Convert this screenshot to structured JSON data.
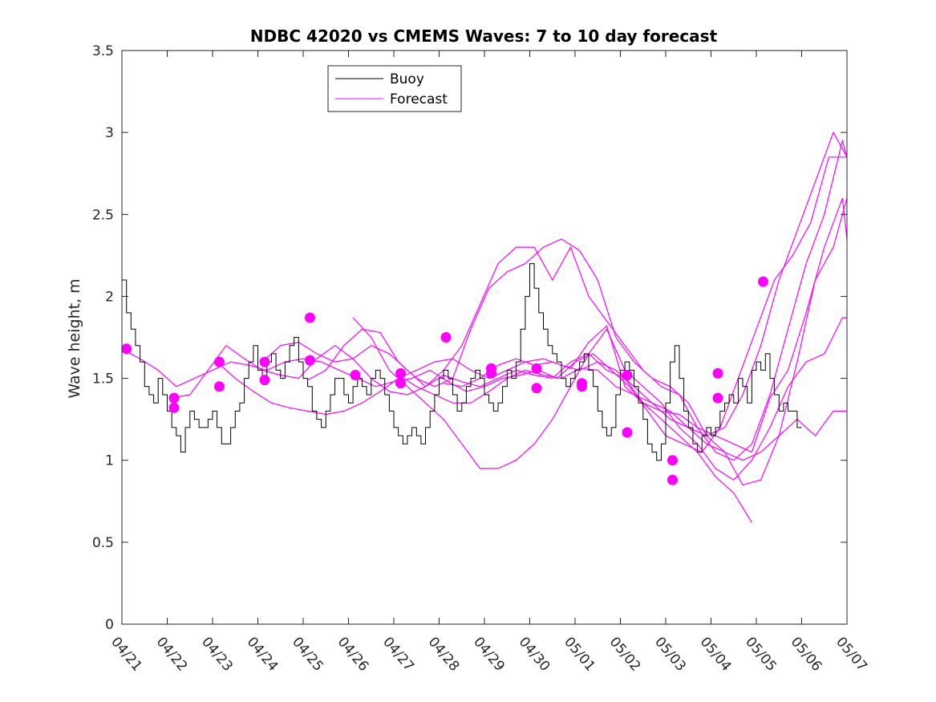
{
  "chart_data": {
    "type": "line",
    "title": "NDBC 42020 vs CMEMS Waves: 7 to 10 day forecast",
    "xlabel": "",
    "ylabel": "Wave height, m",
    "xlim": [
      "04/21",
      "05/07"
    ],
    "ylim": [
      0,
      3.5
    ],
    "x_ticks": [
      "04/21",
      "04/22",
      "04/23",
      "04/24",
      "04/25",
      "04/26",
      "04/27",
      "04/28",
      "04/29",
      "04/30",
      "05/01",
      "05/02",
      "05/03",
      "05/04",
      "05/05",
      "05/06",
      "05/07"
    ],
    "y_ticks": [
      "0",
      "0.5",
      "1",
      "1.5",
      "2",
      "2.5",
      "3",
      "3.5"
    ],
    "legend": {
      "placement": "top-center-left",
      "entries": [
        "Buoy",
        "Forecast"
      ]
    },
    "colors": {
      "buoy": "#000000",
      "forecast": "#ff00ff",
      "axes": "#262626"
    },
    "grid": false,
    "buoy": {
      "name": "Buoy",
      "x_days_since_04_21": [
        0,
        0.1,
        0.2,
        0.3,
        0.4,
        0.5,
        0.6,
        0.7,
        0.8,
        0.9,
        1,
        1.1,
        1.2,
        1.3,
        1.4,
        1.5,
        1.6,
        1.7,
        1.8,
        1.9,
        2,
        2.1,
        2.2,
        2.3,
        2.4,
        2.5,
        2.6,
        2.7,
        2.8,
        2.9,
        3,
        3.1,
        3.2,
        3.3,
        3.4,
        3.5,
        3.6,
        3.7,
        3.8,
        3.9,
        4,
        4.1,
        4.2,
        4.3,
        4.4,
        4.5,
        4.6,
        4.7,
        4.8,
        4.9,
        5,
        5.1,
        5.2,
        5.3,
        5.4,
        5.5,
        5.6,
        5.7,
        5.8,
        5.9,
        6,
        6.1,
        6.2,
        6.3,
        6.4,
        6.5,
        6.6,
        6.7,
        6.8,
        6.9,
        7,
        7.1,
        7.2,
        7.3,
        7.4,
        7.5,
        7.6,
        7.7,
        7.8,
        7.9,
        8,
        8.1,
        8.2,
        8.3,
        8.4,
        8.5,
        8.6,
        8.7,
        8.8,
        8.9,
        9,
        9.1,
        9.2,
        9.3,
        9.4,
        9.5,
        9.6,
        9.7,
        9.8,
        9.9,
        10,
        10.1,
        10.2,
        10.3,
        10.4,
        10.5,
        10.6,
        10.7,
        10.8,
        10.9,
        11,
        11.1,
        11.2,
        11.3,
        11.4,
        11.5,
        11.6,
        11.7,
        11.8,
        11.9,
        12,
        12.1,
        12.2,
        12.3,
        12.4,
        12.5,
        12.6,
        12.7,
        12.8,
        12.9,
        13,
        13.1,
        13.2,
        13.3,
        13.4,
        13.5,
        13.6,
        13.7,
        13.8,
        13.9,
        14,
        14.1,
        14.2,
        14.3,
        14.4,
        14.5,
        14.6,
        14.7,
        14.8,
        14.9,
        15,
        15.1,
        15.2,
        15.3
      ],
      "y": [
        2.1,
        1.9,
        1.8,
        1.7,
        1.6,
        1.45,
        1.4,
        1.35,
        1.5,
        1.4,
        1.3,
        1.2,
        1.15,
        1.05,
        1.2,
        1.3,
        1.25,
        1.2,
        1.2,
        1.25,
        1.3,
        1.2,
        1.1,
        1.1,
        1.2,
        1.3,
        1.35,
        1.5,
        1.6,
        1.7,
        1.55,
        1.5,
        1.6,
        1.65,
        1.55,
        1.5,
        1.6,
        1.7,
        1.75,
        1.6,
        1.5,
        1.45,
        1.3,
        1.25,
        1.2,
        1.3,
        1.4,
        1.5,
        1.5,
        1.4,
        1.35,
        1.45,
        1.5,
        1.45,
        1.4,
        1.5,
        1.55,
        1.5,
        1.4,
        1.3,
        1.2,
        1.15,
        1.1,
        1.15,
        1.2,
        1.15,
        1.1,
        1.2,
        1.3,
        1.4,
        1.5,
        1.55,
        1.5,
        1.4,
        1.3,
        1.35,
        1.45,
        1.5,
        1.55,
        1.5,
        1.4,
        1.35,
        1.3,
        1.35,
        1.45,
        1.55,
        1.5,
        1.6,
        1.8,
        2.0,
        2.2,
        2.05,
        1.9,
        1.8,
        1.7,
        1.65,
        1.6,
        1.5,
        1.45,
        1.5,
        1.55,
        1.6,
        1.65,
        1.55,
        1.45,
        1.3,
        1.2,
        1.15,
        1.2,
        1.4,
        1.55,
        1.6,
        1.55,
        1.45,
        1.35,
        1.25,
        1.1,
        1.05,
        1.0,
        1.1,
        1.35,
        1.6,
        1.7,
        1.5,
        1.3,
        1.2,
        1.1,
        1.05,
        1.15,
        1.2,
        1.15,
        1.2,
        1.3,
        1.35,
        1.4,
        1.35,
        1.5,
        1.45,
        1.35,
        1.55,
        1.6,
        1.55,
        1.65,
        1.5,
        1.4,
        1.3,
        1.35,
        1.3,
        1.3,
        1.2
      ],
      "stepped": true
    },
    "forecast_series": [
      {
        "x_days_since_04_21": [
          0,
          0.4,
          0.8,
          1.2,
          1.6,
          2.0,
          2.4,
          2.8,
          3.2,
          3.6,
          4.0,
          4.4,
          4.8,
          5.2,
          5.6,
          6.0,
          6.4,
          6.8,
          7.2,
          7.6,
          8.0,
          8.4,
          8.8,
          9.2,
          9.6,
          10.0,
          10.4,
          10.8,
          11.2,
          11.6,
          12.0,
          12.4,
          12.8,
          13.2,
          13.6,
          14.0,
          14.4,
          14.8,
          15.2,
          15.6,
          16.0
        ],
        "y": [
          1.68,
          1.62,
          1.55,
          1.45,
          1.5,
          1.55,
          1.6,
          1.58,
          1.55,
          1.6,
          1.62,
          1.6,
          1.55,
          1.5,
          1.45,
          1.48,
          1.5,
          1.55,
          1.48,
          1.42,
          1.45,
          1.5,
          1.52,
          1.55,
          1.5,
          1.6,
          1.65,
          1.55,
          1.45,
          1.3,
          1.15,
          1.1,
          1.05,
          1.2,
          1.5,
          1.8,
          2.1,
          2.25,
          2.45,
          2.85,
          2.85
        ]
      },
      {
        "x_days_since_04_21": [
          1.1,
          1.5,
          1.9,
          2.3,
          2.7,
          3.1,
          3.5,
          3.9,
          4.3,
          4.7,
          5.1,
          5.5,
          5.9,
          6.3,
          6.7,
          7.1,
          7.5,
          7.9,
          8.3,
          8.7,
          9.1,
          9.5,
          9.9,
          10.3,
          10.7,
          11.1,
          11.5,
          11.9,
          12.3,
          12.7,
          13.1,
          13.5,
          13.9
        ],
        "y": [
          1.38,
          1.4,
          1.55,
          1.7,
          1.62,
          1.55,
          1.52,
          1.5,
          1.62,
          1.7,
          1.62,
          1.5,
          1.42,
          1.4,
          1.45,
          1.52,
          1.48,
          1.45,
          1.5,
          1.55,
          1.52,
          1.5,
          1.6,
          1.65,
          1.55,
          1.5,
          1.35,
          1.25,
          1.15,
          1.05,
          0.9,
          0.8,
          0.62
        ]
      },
      {
        "x_days_since_04_21": [
          2.1,
          2.5,
          2.9,
          3.3,
          3.7,
          4.1,
          4.5,
          4.9,
          5.3,
          5.7,
          6.1,
          6.5,
          6.9,
          7.3,
          7.7,
          8.1,
          8.5,
          8.9,
          9.3,
          9.7,
          10.1,
          10.5,
          10.9,
          11.3,
          11.7,
          12.1,
          12.5,
          12.9,
          13.3,
          13.7,
          14.1,
          14.5,
          14.9,
          15.3,
          15.7,
          16.0
        ],
        "y": [
          1.6,
          1.5,
          1.42,
          1.35,
          1.32,
          1.3,
          1.28,
          1.3,
          1.35,
          1.42,
          1.5,
          1.55,
          1.6,
          1.62,
          1.55,
          1.5,
          1.55,
          1.6,
          1.62,
          1.58,
          1.55,
          1.6,
          1.55,
          1.45,
          1.35,
          1.25,
          1.2,
          1.15,
          1.2,
          1.4,
          1.7,
          2.1,
          2.4,
          2.7,
          3.0,
          2.85
        ]
      },
      {
        "x_days_since_04_21": [
          3.1,
          3.5,
          3.9,
          4.3,
          4.7,
          5.1,
          5.5,
          5.9,
          6.3,
          6.7,
          7.1,
          7.5,
          7.9,
          8.3,
          8.7,
          9.1,
          9.5,
          9.9,
          10.3,
          10.7,
          11.1,
          11.5,
          11.9,
          12.3,
          12.7,
          13.1,
          13.5,
          13.9,
          14.3,
          14.7,
          15.1,
          15.5,
          15.9,
          16.0
        ],
        "y": [
          1.6,
          1.7,
          1.72,
          1.65,
          1.6,
          1.62,
          1.7,
          1.65,
          1.55,
          1.45,
          1.55,
          1.7,
          1.95,
          2.2,
          2.3,
          2.3,
          2.1,
          2.3,
          2.0,
          1.85,
          1.7,
          1.55,
          1.45,
          1.4,
          1.2,
          1.05,
          1.0,
          1.1,
          1.4,
          1.8,
          2.2,
          2.5,
          2.95,
          2.85
        ]
      },
      {
        "x_days_since_04_21": [
          4.1,
          4.5,
          4.9,
          5.3,
          5.7,
          6.1,
          6.5,
          6.9,
          7.3,
          7.7,
          8.1,
          8.5,
          8.9,
          9.3,
          9.7,
          10.1,
          10.5,
          10.9,
          11.3,
          11.7,
          12.1,
          12.5,
          12.9,
          13.3,
          13.7,
          14.1,
          14.5,
          14.9,
          15.3,
          15.7,
          16.0
        ],
        "y": [
          1.49,
          1.55,
          1.7,
          1.8,
          1.78,
          1.6,
          1.5,
          1.45,
          1.5,
          1.8,
          2.05,
          2.15,
          2.2,
          2.3,
          2.35,
          2.28,
          2.1,
          1.75,
          1.6,
          1.5,
          1.45,
          1.35,
          1.15,
          1.05,
          0.85,
          0.88,
          1.15,
          1.6,
          2.1,
          2.3,
          2.6
        ]
      },
      {
        "x_days_since_04_21": [
          5.1,
          5.5,
          5.9,
          6.3,
          6.7,
          7.1,
          7.5,
          7.9,
          8.3,
          8.7,
          9.1,
          9.5,
          9.9,
          10.3,
          10.7,
          11.1,
          11.5,
          11.9,
          12.3,
          12.7,
          13.1,
          13.5,
          13.9,
          14.3,
          14.7,
          15.1,
          15.5,
          15.9,
          16.0
        ],
        "y": [
          1.87,
          1.75,
          1.55,
          1.45,
          1.35,
          1.25,
          1.1,
          0.95,
          0.95,
          1.0,
          1.1,
          1.25,
          1.45,
          1.65,
          1.8,
          1.55,
          1.45,
          1.35,
          1.2,
          1.1,
          0.95,
          0.88,
          1.0,
          1.2,
          1.45,
          1.6,
          1.65,
          1.87,
          1.87
        ]
      },
      {
        "x_days_since_04_21": [
          6.1,
          6.5,
          6.9,
          7.3,
          7.7,
          8.1,
          8.5,
          8.9,
          9.3,
          9.7,
          10.1,
          10.5,
          10.9,
          11.3,
          11.7,
          12.1,
          12.5,
          12.9,
          13.3,
          13.7,
          14.1,
          14.5,
          14.9,
          15.3,
          15.7,
          16.0
        ],
        "y": [
          1.52,
          1.45,
          1.4,
          1.35,
          1.35,
          1.42,
          1.5,
          1.55,
          1.52,
          1.5,
          1.56,
          1.55,
          1.45,
          1.4,
          1.35,
          1.3,
          1.2,
          1.1,
          1.05,
          1.0,
          1.05,
          1.15,
          1.25,
          1.15,
          1.3,
          1.3
        ]
      },
      {
        "x_days_since_04_21": [
          7.1,
          7.5,
          7.9,
          8.3,
          8.7,
          9.1,
          9.5,
          9.9,
          10.3,
          10.7,
          11.1,
          11.5,
          11.9,
          12.3,
          12.7,
          13.1,
          13.5,
          13.9,
          14.3,
          14.7,
          15.1,
          15.5,
          15.9,
          16.0
        ],
        "y": [
          1.47,
          1.45,
          1.5,
          1.58,
          1.62,
          1.58,
          1.6,
          1.56,
          1.72,
          1.82,
          1.45,
          1.35,
          1.3,
          1.28,
          1.2,
          1.15,
          1.1,
          1.05,
          1.38,
          1.55,
          1.9,
          2.3,
          2.6,
          2.35
        ]
      }
    ],
    "forecast_markers_days_since_04_21": [
      [
        0.1,
        1.68
      ],
      [
        1.15,
        1.38
      ],
      [
        1.15,
        1.32
      ],
      [
        2.15,
        1.6
      ],
      [
        2.15,
        1.45
      ],
      [
        3.15,
        1.6
      ],
      [
        3.15,
        1.49
      ],
      [
        4.15,
        1.87
      ],
      [
        4.15,
        1.61
      ],
      [
        5.15,
        1.52
      ],
      [
        6.15,
        1.53
      ],
      [
        6.15,
        1.47
      ],
      [
        7.15,
        1.75
      ],
      [
        8.15,
        1.56
      ],
      [
        8.15,
        1.53
      ],
      [
        9.15,
        1.56
      ],
      [
        9.15,
        1.44
      ],
      [
        10.15,
        1.47
      ],
      [
        10.15,
        1.45
      ],
      [
        11.15,
        1.52
      ],
      [
        11.15,
        1.17
      ],
      [
        12.15,
        1.0
      ],
      [
        12.15,
        0.88
      ],
      [
        13.15,
        1.53
      ],
      [
        13.15,
        1.38
      ],
      [
        14.15,
        2.09
      ]
    ]
  }
}
